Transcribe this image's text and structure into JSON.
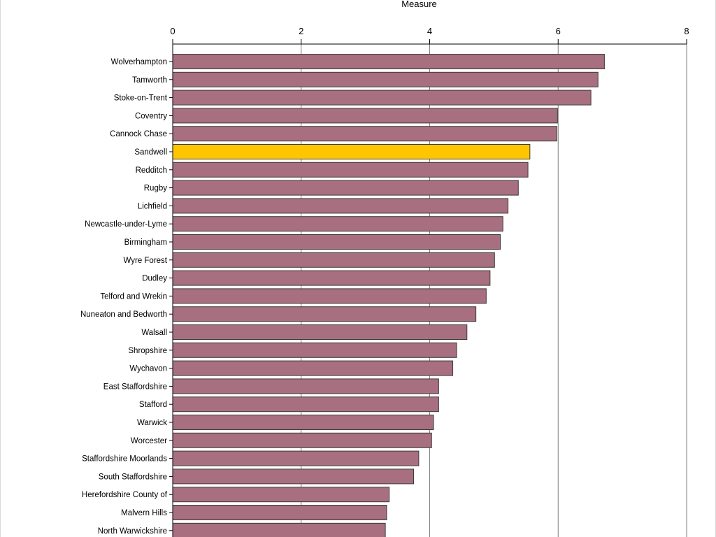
{
  "chart_data": {
    "type": "bar",
    "orientation": "horizontal",
    "title": "",
    "xlabel": "Measure",
    "ylabel": "",
    "xlim": [
      0,
      8
    ],
    "xticks": [
      0,
      2,
      4,
      6,
      8
    ],
    "x_axis_position": "top",
    "grid": true,
    "legend": "none",
    "categories": [
      "Wolverhampton",
      "Tamworth",
      "Stoke-on-Trent",
      "Coventry",
      "Cannock Chase",
      "Sandwell",
      "Redditch",
      "Rugby",
      "Lichfield",
      "Newcastle-under-Lyme",
      "Birmingham",
      "Wyre Forest",
      "Dudley",
      "Telford and Wrekin",
      "Nuneaton and Bedworth",
      "Walsall",
      "Shropshire",
      "Wychavon",
      "East Staffordshire",
      "Stafford",
      "Warwick",
      "Worcester",
      "Staffordshire Moorlands",
      "South Staffordshire",
      "Herefordshire County of",
      "Malvern Hills",
      "North Warwickshire"
    ],
    "values": [
      6.72,
      6.62,
      6.51,
      5.99,
      5.98,
      5.56,
      5.53,
      5.38,
      5.22,
      5.14,
      5.1,
      5.01,
      4.94,
      4.88,
      4.72,
      4.58,
      4.42,
      4.36,
      4.14,
      4.14,
      4.06,
      4.03,
      3.83,
      3.75,
      3.37,
      3.33,
      3.31
    ],
    "highlight": "Sandwell",
    "colors": {
      "bar": "#a86f80",
      "highlight": "#ffc600",
      "bar_stroke": "#3a3a3a",
      "grid": "#7f7f7f"
    }
  }
}
